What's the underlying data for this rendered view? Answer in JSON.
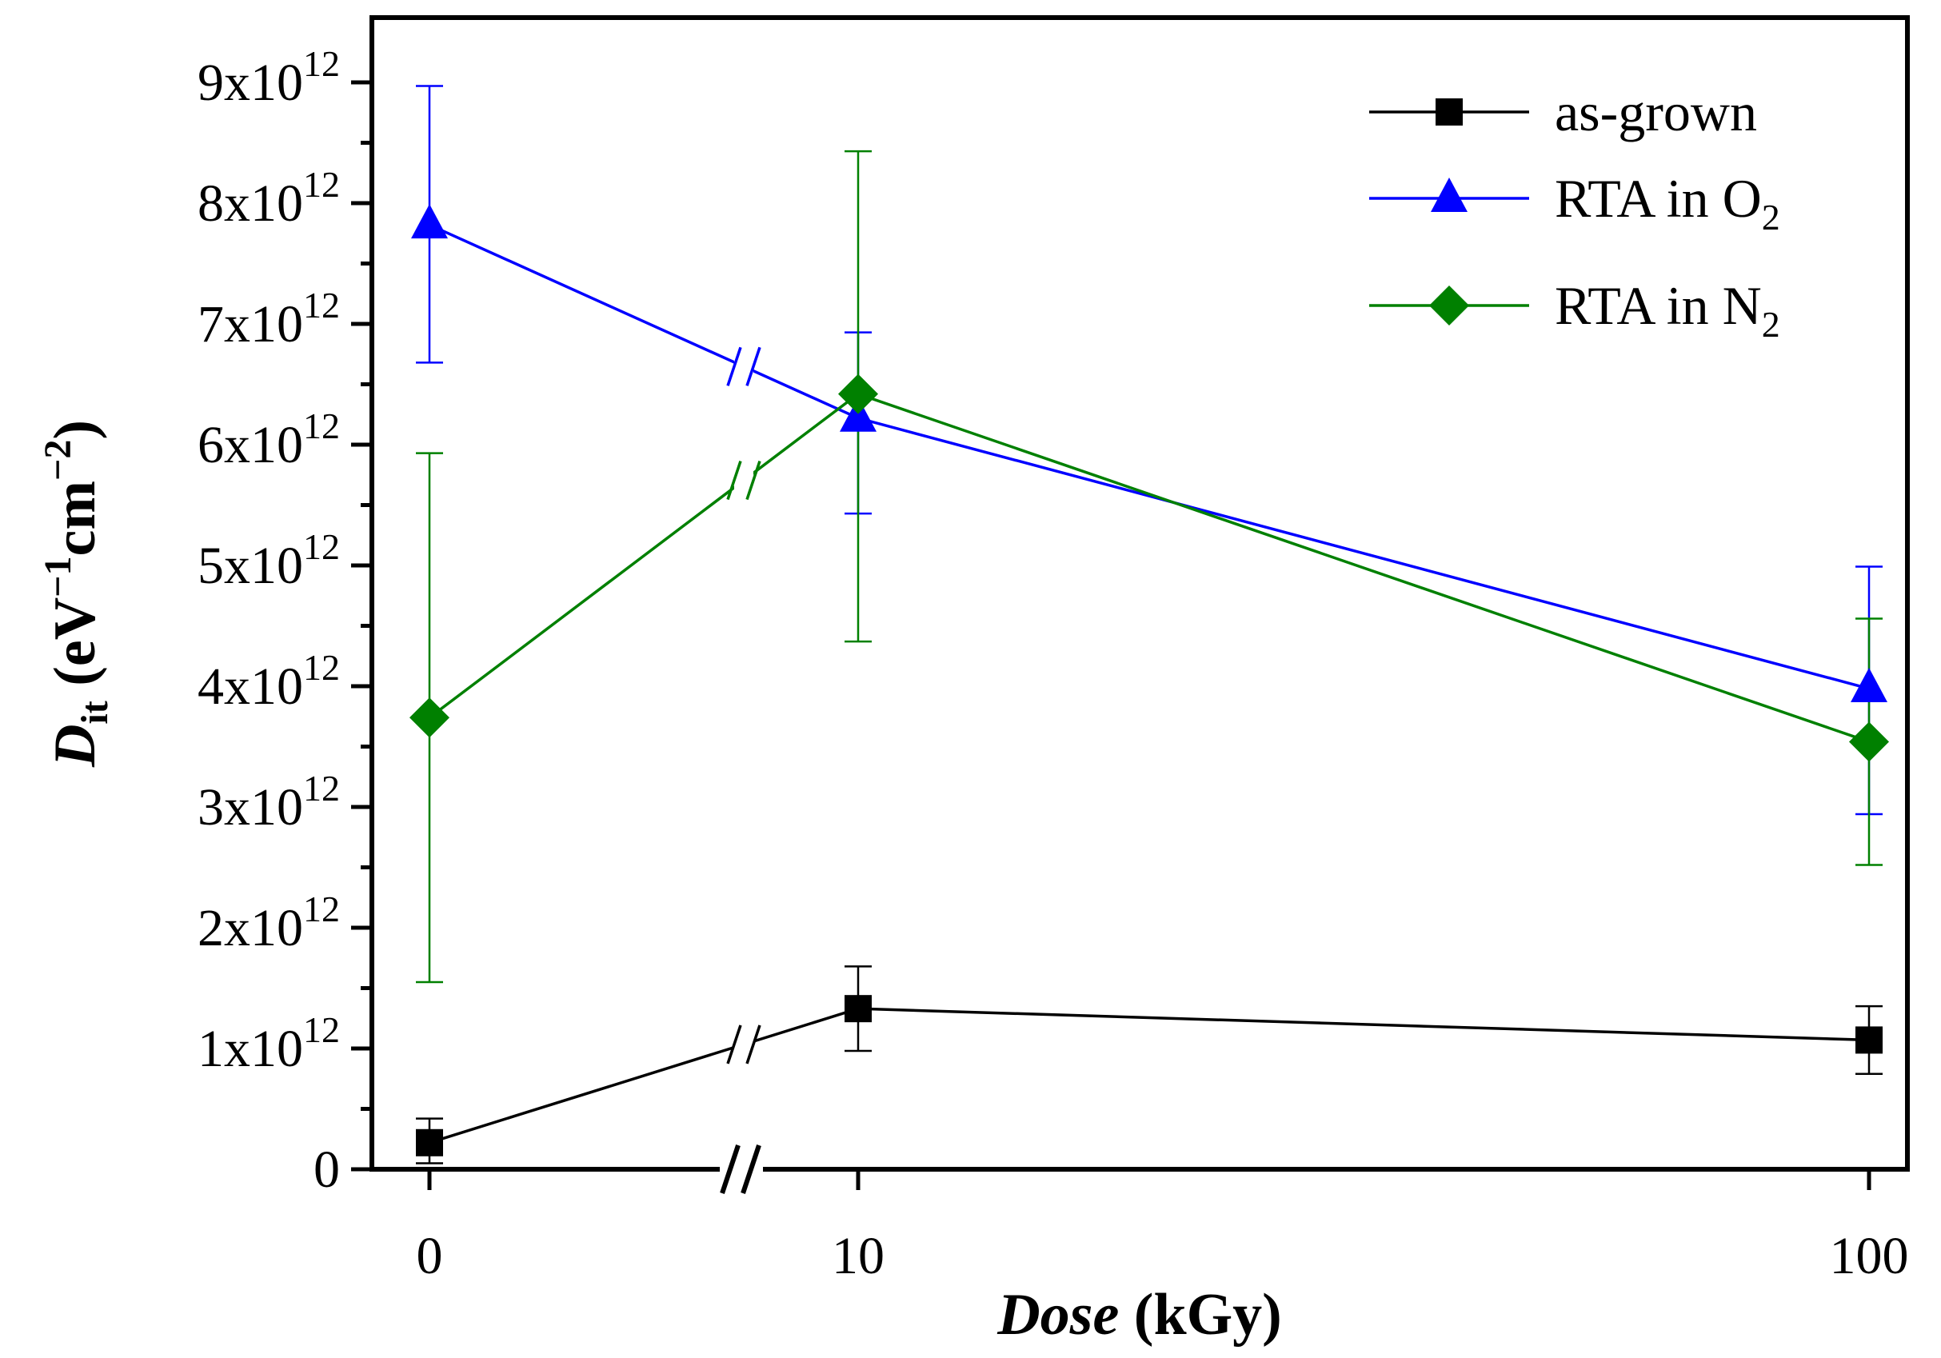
{
  "chart_data": {
    "type": "line",
    "title": "",
    "xlabel": {
      "italic": "Dose",
      "rest": " (kGy)"
    },
    "ylabel": {
      "main": "D",
      "sub": "it",
      "paren_open": " (eV",
      "sup1": "−1",
      "mid": "cm",
      "sup2": "−2",
      "paren_close": ")"
    },
    "categories": [
      "0",
      "10",
      "100"
    ],
    "y_ticks": [
      {
        "value": 0,
        "mantissa": "0",
        "exp": ""
      },
      {
        "value": 1,
        "mantissa": "1x10",
        "exp": "12"
      },
      {
        "value": 2,
        "mantissa": "2x10",
        "exp": "12"
      },
      {
        "value": 3,
        "mantissa": "3x10",
        "exp": "12"
      },
      {
        "value": 4,
        "mantissa": "4x10",
        "exp": "12"
      },
      {
        "value": 5,
        "mantissa": "5x10",
        "exp": "12"
      },
      {
        "value": 6,
        "mantissa": "6x10",
        "exp": "12"
      },
      {
        "value": 7,
        "mantissa": "7x10",
        "exp": "12"
      },
      {
        "value": 8,
        "mantissa": "8x10",
        "exp": "12"
      },
      {
        "value": 9,
        "mantissa": "9x10",
        "exp": "12"
      }
    ],
    "y_unit_scale": "1e12",
    "ylim": [
      0,
      9.3
    ],
    "axis_break": "between 0 and 10 kGy",
    "legend_position": "top-right",
    "series": [
      {
        "name": "as-grown",
        "name_sub": "",
        "color": "#000000",
        "marker": "square",
        "values": [
          0.22,
          1.33,
          1.07
        ],
        "err_low": [
          0.05,
          0.98,
          0.79
        ],
        "err_high": [
          0.42,
          1.68,
          1.35
        ]
      },
      {
        "name": "RTA in O",
        "name_sub": "2",
        "color": "#0000ff",
        "marker": "triangle",
        "values": [
          7.82,
          6.22,
          3.98
        ],
        "err_low": [
          6.68,
          5.43,
          2.94
        ],
        "err_high": [
          8.97,
          6.93,
          4.99
        ]
      },
      {
        "name": "RTA in N",
        "name_sub": "2",
        "color": "#008000",
        "marker": "diamond",
        "values": [
          3.74,
          6.42,
          3.54
        ],
        "err_low": [
          1.55,
          4.37,
          2.52
        ],
        "err_high": [
          5.93,
          8.43,
          4.56
        ]
      }
    ]
  }
}
